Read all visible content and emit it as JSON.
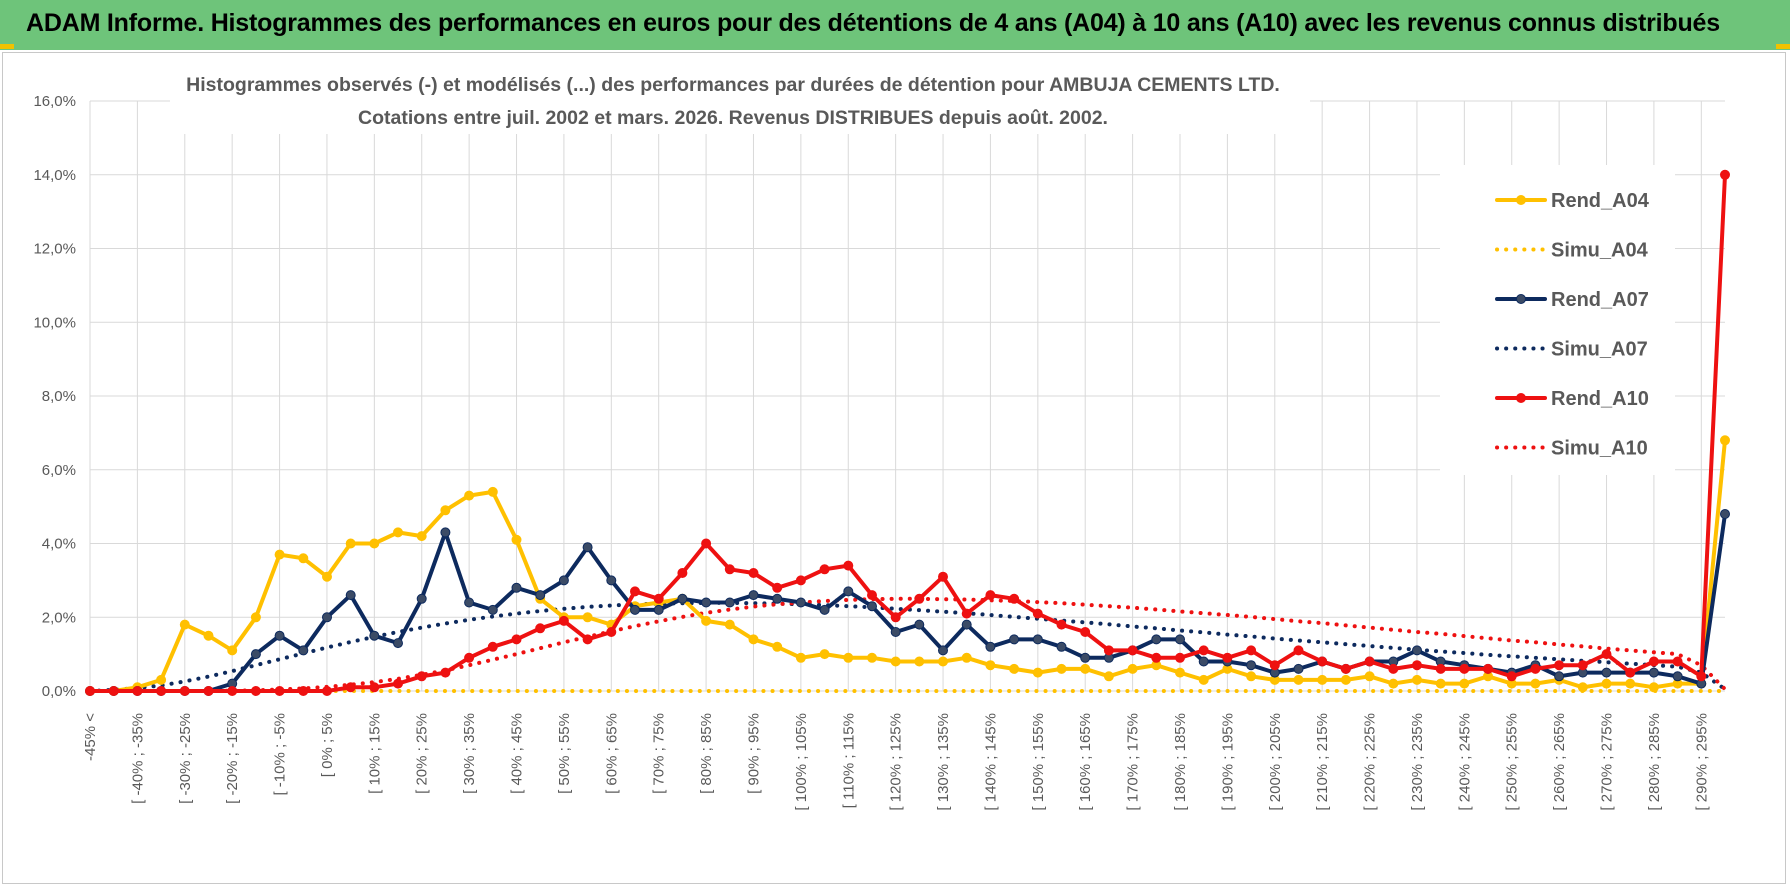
{
  "banner": {
    "title": "ADAM Informe. Histogrammes des performances en euros pour des détentions de 4 ans (A04) à 10 ans (A10) avec les revenus connus distribués"
  },
  "colors": {
    "banner": "#6ec47a",
    "A04": "#ffc000",
    "A07": "#0d2a5e",
    "A10": "#ee1111",
    "grid": "#d9d9d9"
  },
  "chart_data": {
    "type": "line",
    "title_line1": "Histogrammes observés (-) et modélisés (...) des performances par durées de détention pour AMBUJA CEMENTS LTD.",
    "title_line2": "Cotations entre juil. 2002 et mars. 2026. Revenus DISTRIBUES depuis août. 2002.",
    "ylim": [
      0,
      16
    ],
    "yticks": [
      "0,0%",
      "2,0%",
      "4,0%",
      "6,0%",
      "8,0%",
      "10,0%",
      "12,0%",
      "14,0%",
      "16,0%"
    ],
    "grid": true,
    "legend_position": "right",
    "x_labels": [
      "-45% <",
      "[ -40% ; -35%",
      "[ -30% ; -25%",
      "[ -20% ; -15%",
      "[ -10% ; -5%",
      "[ 0% ; 5%",
      "[ 10% ; 15%",
      "[ 20% ; 25%",
      "[ 30% ; 35%",
      "[ 40% ; 45%",
      "[ 50% ; 55%",
      "[ 60% ; 65%",
      "[ 70% ; 75%",
      "[ 80% ; 85%",
      "[ 90% ; 95%",
      "[ 100% ; 105%",
      "[ 110% ; 115%",
      "[ 120% ; 125%",
      "[ 130% ; 135%",
      "[ 140% ; 145%",
      "[ 150% ; 155%",
      "[ 160% ; 165%",
      "[ 170% ; 175%",
      "[ 180% ; 185%",
      "[ 190% ; 195%",
      "[ 200% ; 205%",
      "[ 210% ; 215%",
      "[ 220% ; 225%",
      "[ 230% ; 235%",
      "[ 240% ; 245%",
      "[ 250% ; 255%",
      "[ 260% ; 265%",
      "[ 270% ; 275%",
      "[ 280% ; 285%",
      "[ 290% ; 295%"
    ],
    "category_count": 70,
    "series": [
      {
        "name": "Rend_A04",
        "style": "solid",
        "markers": true,
        "color": "#ffc000",
        "values": [
          0,
          0,
          0.1,
          0.3,
          1.8,
          1.5,
          1.1,
          2.0,
          3.7,
          3.6,
          3.1,
          4.0,
          4.0,
          4.3,
          4.2,
          4.9,
          5.3,
          5.4,
          4.1,
          2.5,
          2.0,
          2.0,
          1.8,
          2.3,
          2.4,
          2.5,
          1.9,
          1.8,
          1.4,
          1.2,
          0.9,
          1.0,
          0.9,
          0.9,
          0.8,
          0.8,
          0.8,
          0.9,
          0.7,
          0.6,
          0.5,
          0.6,
          0.6,
          0.4,
          0.6,
          0.7,
          0.5,
          0.3,
          0.6,
          0.4,
          0.3,
          0.3,
          0.3,
          0.3,
          0.4,
          0.2,
          0.3,
          0.2,
          0.2,
          0.4,
          0.2,
          0.2,
          0.3,
          0.1,
          0.2,
          0.2,
          0.1,
          0.2,
          0.2,
          6.8
        ]
      },
      {
        "name": "Simu_A04",
        "style": "dotted",
        "markers": false,
        "color": "#ffc000",
        "values": [
          0,
          0,
          0,
          0,
          0,
          0,
          0,
          0,
          0,
          0,
          0,
          0,
          0,
          0,
          0,
          0,
          0,
          0,
          0,
          0,
          0,
          0,
          0,
          0,
          0,
          0,
          0,
          0,
          0,
          0,
          0,
          0,
          0,
          0,
          0,
          0,
          0,
          0,
          0,
          0,
          0,
          0,
          0,
          0,
          0,
          0,
          0,
          0,
          0,
          0,
          0,
          0,
          0,
          0,
          0,
          0,
          0,
          0,
          0,
          0,
          0,
          0,
          0,
          0,
          0,
          0,
          0,
          0,
          0,
          0
        ]
      },
      {
        "name": "Rend_A07",
        "style": "solid",
        "markers": true,
        "color": "#0d2a5e",
        "values": [
          0,
          0,
          0,
          0,
          0,
          0,
          0.2,
          1.0,
          1.5,
          1.1,
          2.0,
          2.6,
          1.5,
          1.3,
          2.5,
          4.3,
          2.4,
          2.2,
          2.8,
          2.6,
          3.0,
          3.9,
          3.0,
          2.2,
          2.2,
          2.5,
          2.4,
          2.4,
          2.6,
          2.5,
          2.4,
          2.2,
          2.7,
          2.3,
          1.6,
          1.8,
          1.1,
          1.8,
          1.2,
          1.4,
          1.4,
          1.2,
          0.9,
          0.9,
          1.1,
          1.4,
          1.4,
          0.8,
          0.8,
          0.7,
          0.5,
          0.6,
          0.8,
          0.6,
          0.8,
          0.8,
          1.1,
          0.8,
          0.7,
          0.6,
          0.5,
          0.7,
          0.4,
          0.5,
          0.5,
          0.5,
          0.5,
          0.4,
          0.2,
          4.8
        ]
      },
      {
        "name": "Simu_A07",
        "style": "dotted",
        "markers": false,
        "color": "#0d2a5e",
        "values": [
          0,
          0.03,
          0.08,
          0.15,
          0.26,
          0.39,
          0.54,
          0.7,
          0.86,
          1.02,
          1.18,
          1.33,
          1.47,
          1.6,
          1.72,
          1.83,
          1.93,
          2.02,
          2.1,
          2.17,
          2.23,
          2.28,
          2.32,
          2.35,
          2.37,
          2.38,
          2.39,
          2.39,
          2.38,
          2.37,
          2.35,
          2.33,
          2.3,
          2.27,
          2.23,
          2.19,
          2.15,
          2.11,
          2.06,
          2.01,
          1.96,
          1.91,
          1.86,
          1.81,
          1.75,
          1.7,
          1.64,
          1.59,
          1.53,
          1.48,
          1.42,
          1.37,
          1.32,
          1.27,
          1.22,
          1.17,
          1.12,
          1.07,
          1.03,
          0.98,
          0.94,
          0.9,
          0.86,
          0.82,
          0.78,
          0.74,
          0.7,
          0.66,
          0.5,
          0.05
        ]
      },
      {
        "name": "Rend_A10",
        "style": "solid",
        "markers": true,
        "color": "#ee1111",
        "values": [
          0,
          0,
          0,
          0,
          0,
          0,
          0,
          0,
          0,
          0,
          0,
          0.1,
          0.1,
          0.2,
          0.4,
          0.5,
          0.9,
          1.2,
          1.4,
          1.7,
          1.9,
          1.4,
          1.6,
          2.7,
          2.5,
          3.2,
          4.0,
          3.3,
          3.2,
          2.8,
          3.0,
          3.3,
          3.4,
          2.6,
          2.0,
          2.5,
          3.1,
          2.1,
          2.6,
          2.5,
          2.1,
          1.8,
          1.6,
          1.1,
          1.1,
          0.9,
          0.9,
          1.1,
          0.9,
          1.1,
          0.7,
          1.1,
          0.8,
          0.6,
          0.8,
          0.6,
          0.7,
          0.6,
          0.6,
          0.6,
          0.4,
          0.6,
          0.7,
          0.7,
          1.0,
          0.5,
          0.8,
          0.8,
          0.4,
          14.0
        ]
      },
      {
        "name": "Simu_A10",
        "style": "dotted",
        "markers": false,
        "color": "#ee1111",
        "values": [
          0,
          0,
          0,
          0,
          0,
          0,
          0.01,
          0.02,
          0.04,
          0.07,
          0.11,
          0.17,
          0.24,
          0.33,
          0.44,
          0.56,
          0.7,
          0.85,
          1.0,
          1.16,
          1.32,
          1.47,
          1.62,
          1.76,
          1.89,
          2.01,
          2.12,
          2.21,
          2.29,
          2.35,
          2.4,
          2.44,
          2.47,
          2.49,
          2.5,
          2.5,
          2.49,
          2.48,
          2.46,
          2.44,
          2.41,
          2.38,
          2.34,
          2.3,
          2.26,
          2.21,
          2.16,
          2.11,
          2.06,
          2.01,
          1.95,
          1.89,
          1.84,
          1.78,
          1.72,
          1.66,
          1.6,
          1.55,
          1.49,
          1.43,
          1.37,
          1.32,
          1.26,
          1.21,
          1.15,
          1.1,
          1.05,
          1.0,
          0.7,
          0.05
        ]
      }
    ]
  }
}
